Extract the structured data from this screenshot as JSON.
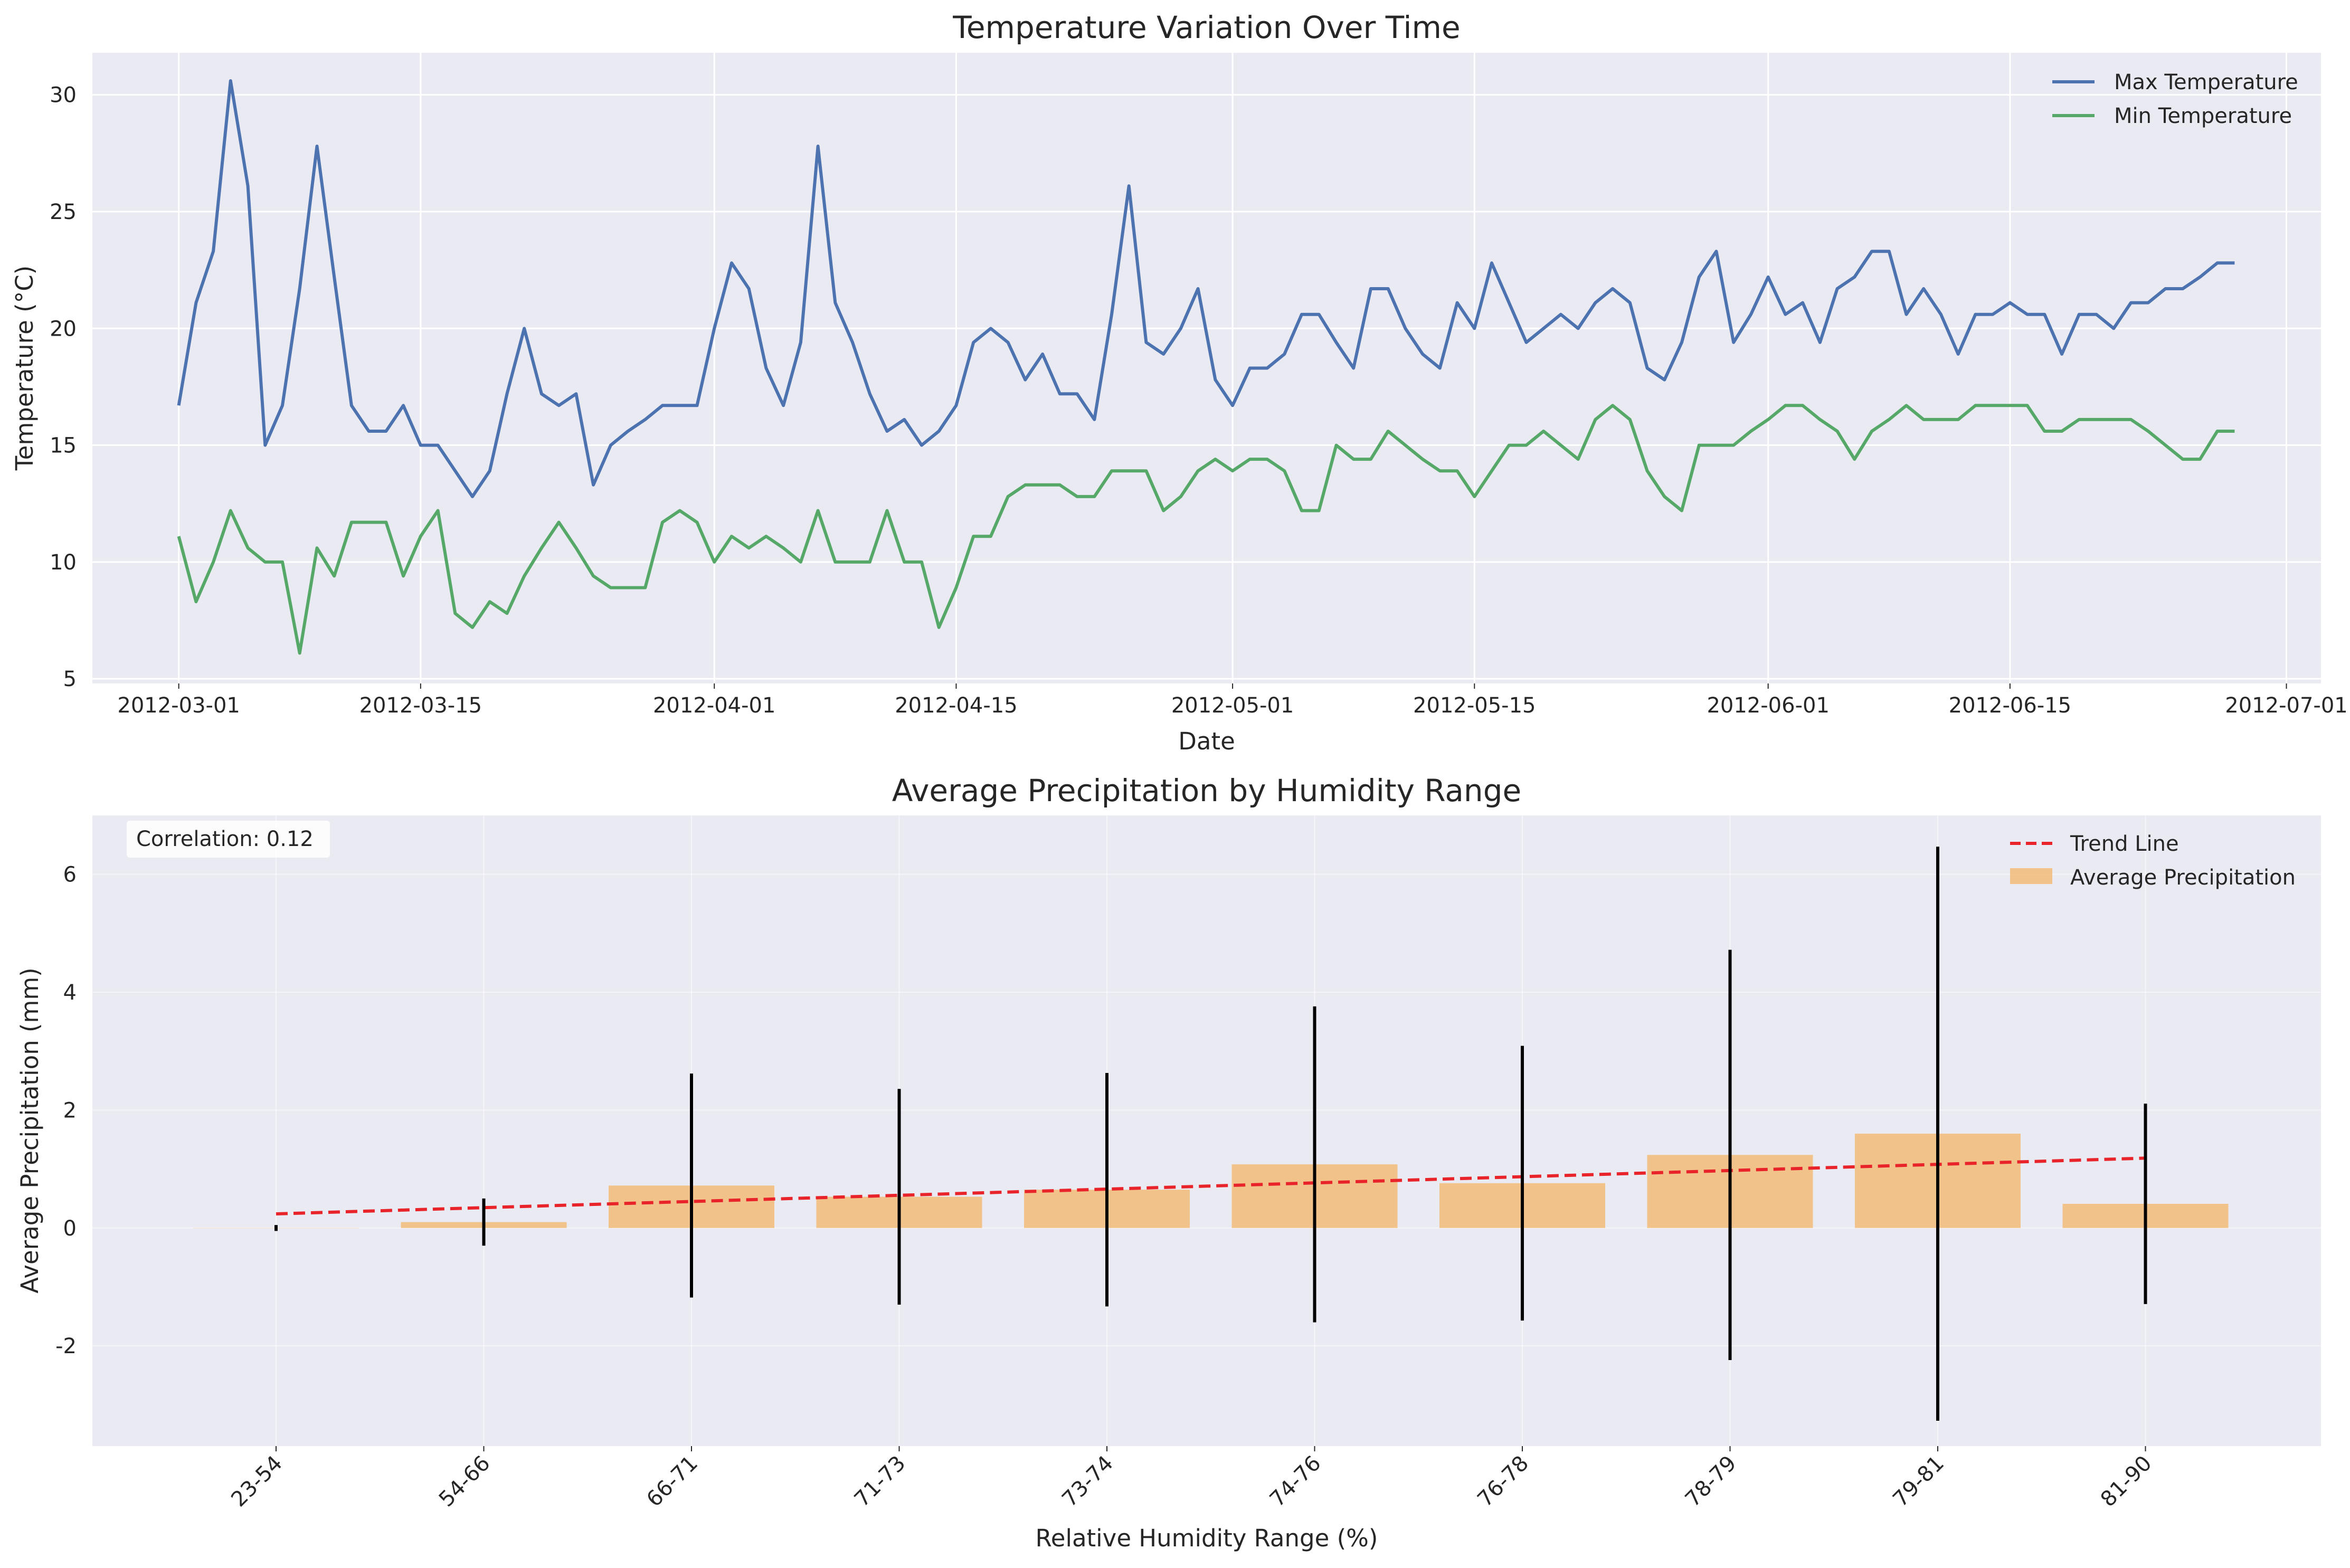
{
  "chart_data": [
    {
      "type": "line",
      "title": "Temperature Variation Over Time",
      "xlabel": "Date",
      "ylabel": "Temperature (°C)",
      "xlim": [
        "2012-02-25",
        "2012-07-03"
      ],
      "ylim": [
        4.8,
        31.8
      ],
      "x_ticks": [
        "2012-03-01",
        "2012-03-15",
        "2012-04-01",
        "2012-04-15",
        "2012-05-01",
        "2012-05-15",
        "2012-06-01",
        "2012-06-15",
        "2012-07-01"
      ],
      "y_ticks": [
        5,
        10,
        15,
        20,
        25,
        30
      ],
      "grid": true,
      "legend_position": "top-right",
      "start_date": "2012-03-01",
      "series": [
        {
          "name": "Max Temperature",
          "color": "#4c72b0",
          "values": [
            16.7,
            21.1,
            23.3,
            30.6,
            26.1,
            15.0,
            16.7,
            21.7,
            27.8,
            22.2,
            16.7,
            15.6,
            15.6,
            16.7,
            15.0,
            15.0,
            13.9,
            12.8,
            13.9,
            17.2,
            20.0,
            17.2,
            16.7,
            17.2,
            13.3,
            15.0,
            15.6,
            16.1,
            16.7,
            16.7,
            16.7,
            20.0,
            22.8,
            21.7,
            18.3,
            16.7,
            19.4,
            27.8,
            21.1,
            19.4,
            17.2,
            15.6,
            16.1,
            15.0,
            15.6,
            16.7,
            19.4,
            20.0,
            19.4,
            17.8,
            18.9,
            17.2,
            17.2,
            16.1,
            20.6,
            26.1,
            19.4,
            18.9,
            20.0,
            21.7,
            17.8,
            16.7,
            18.3,
            18.3,
            18.9,
            20.6,
            20.6,
            19.4,
            18.3,
            21.7,
            21.7,
            20.0,
            18.9,
            18.3,
            21.1,
            20.0,
            22.8,
            21.1,
            19.4,
            20.0,
            20.6,
            20.0,
            21.1,
            21.7,
            21.1,
            18.3,
            17.8,
            19.4,
            22.2,
            23.3,
            19.4,
            20.6,
            22.2,
            20.6,
            21.1,
            19.4,
            21.7,
            22.2,
            23.3,
            23.3,
            20.6,
            21.7,
            20.6,
            18.9,
            20.6,
            20.6,
            21.1,
            20.6,
            20.6,
            18.9,
            20.6,
            20.6,
            20.0,
            21.1,
            21.1,
            21.7,
            21.7,
            22.2,
            22.8,
            22.8
          ]
        },
        {
          "name": "Min Temperature",
          "color": "#55a868",
          "values": [
            11.1,
            8.3,
            10.0,
            12.2,
            10.6,
            10.0,
            10.0,
            6.1,
            10.6,
            9.4,
            11.7,
            11.7,
            11.7,
            9.4,
            11.1,
            12.2,
            7.8,
            7.2,
            8.3,
            7.8,
            9.4,
            10.6,
            11.7,
            10.6,
            9.4,
            8.9,
            8.9,
            8.9,
            11.7,
            12.2,
            11.7,
            10.0,
            11.1,
            10.6,
            11.1,
            10.6,
            10.0,
            12.2,
            10.0,
            10.0,
            10.0,
            12.2,
            10.0,
            10.0,
            7.2,
            8.9,
            11.1,
            11.1,
            12.8,
            13.3,
            13.3,
            13.3,
            12.8,
            12.8,
            13.9,
            13.9,
            13.9,
            12.2,
            12.8,
            13.9,
            14.4,
            13.9,
            14.4,
            14.4,
            13.9,
            12.2,
            12.2,
            15.0,
            14.4,
            14.4,
            15.6,
            15.0,
            14.4,
            13.9,
            13.9,
            12.8,
            13.9,
            15.0,
            15.0,
            15.6,
            15.0,
            14.4,
            16.1,
            16.7,
            16.1,
            13.9,
            12.8,
            12.2,
            15.0,
            15.0,
            15.0,
            15.6,
            16.1,
            16.7,
            16.7,
            16.1,
            15.6,
            14.4,
            15.6,
            16.1,
            16.7,
            16.1,
            16.1,
            16.1,
            16.7,
            16.7,
            16.7,
            16.7,
            15.6,
            15.6,
            16.1,
            16.1,
            16.1,
            16.1,
            15.6,
            15.0,
            14.4,
            14.4,
            15.6,
            15.6
          ]
        }
      ]
    },
    {
      "type": "bar",
      "title": "Average Precipitation by Humidity Range",
      "xlabel": "Relative Humidity Range (%)",
      "ylabel": "Average Precipitation (mm)",
      "ylim": [
        -3.7,
        7.0
      ],
      "y_ticks": [
        -2,
        0,
        2,
        4,
        6
      ],
      "grid": true,
      "legend_position": "top-right",
      "annotation": "Correlation: 0.12",
      "categories": [
        "23-54",
        "54-66",
        "66-71",
        "71-73",
        "73-74",
        "74-76",
        "76-78",
        "78-79",
        "79-81",
        "81-90"
      ],
      "series": [
        {
          "name": "Average Precipitation",
          "color": "#f5a742",
          "values": [
            0.0,
            0.1,
            0.72,
            0.53,
            0.65,
            1.08,
            0.76,
            1.24,
            1.6,
            0.41
          ],
          "error": [
            0.05,
            0.4,
            1.9,
            1.83,
            1.98,
            2.68,
            2.33,
            3.48,
            4.87,
            1.7
          ]
        },
        {
          "name": "Trend Line",
          "color": "#e8232a",
          "style": "dashed",
          "values": [
            0.24,
            0.345,
            0.45,
            0.555,
            0.66,
            0.765,
            0.87,
            0.975,
            1.08,
            1.185
          ]
        }
      ]
    }
  ]
}
